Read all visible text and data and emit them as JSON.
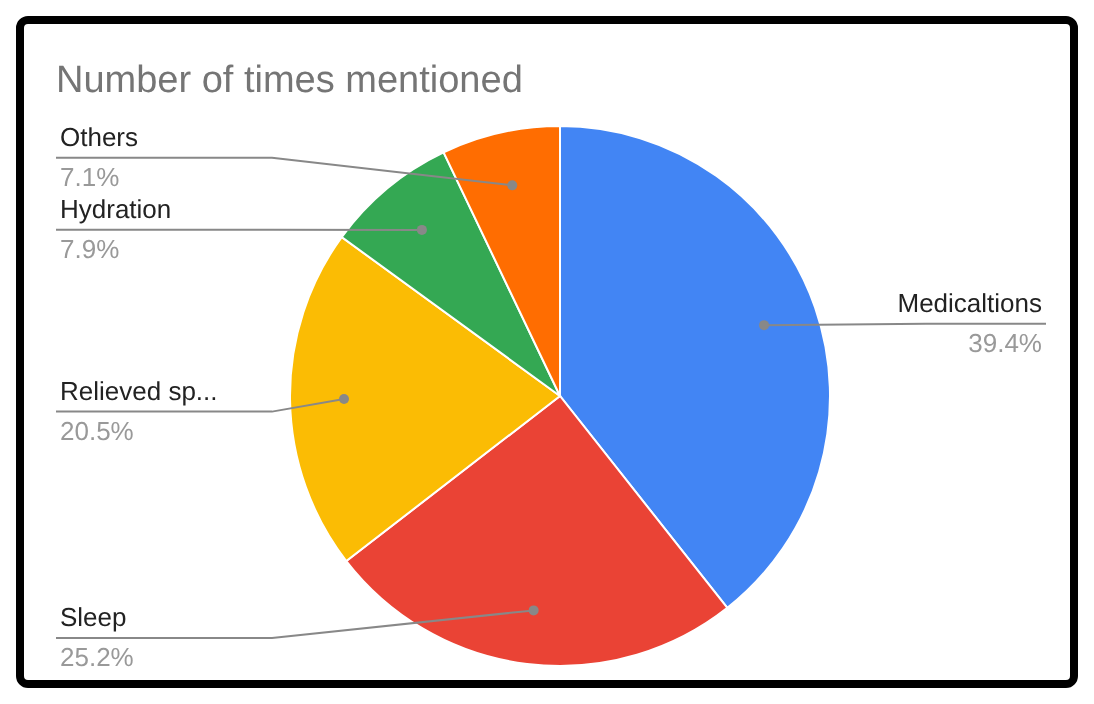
{
  "chart_data": {
    "type": "pie",
    "title": "Number of times mentioned",
    "categories": [
      "Medicaltions",
      "Sleep",
      "Relieved sp...",
      "Hydration",
      "Others"
    ],
    "values": [
      39.4,
      25.2,
      20.5,
      7.9,
      7.1
    ],
    "value_labels": [
      "39.4%",
      "25.2%",
      "20.5%",
      "7.9%",
      "7.1%"
    ],
    "colors": [
      "#4285f4",
      "#ea4335",
      "#fbbc04",
      "#34a853",
      "#ff6d01"
    ]
  }
}
